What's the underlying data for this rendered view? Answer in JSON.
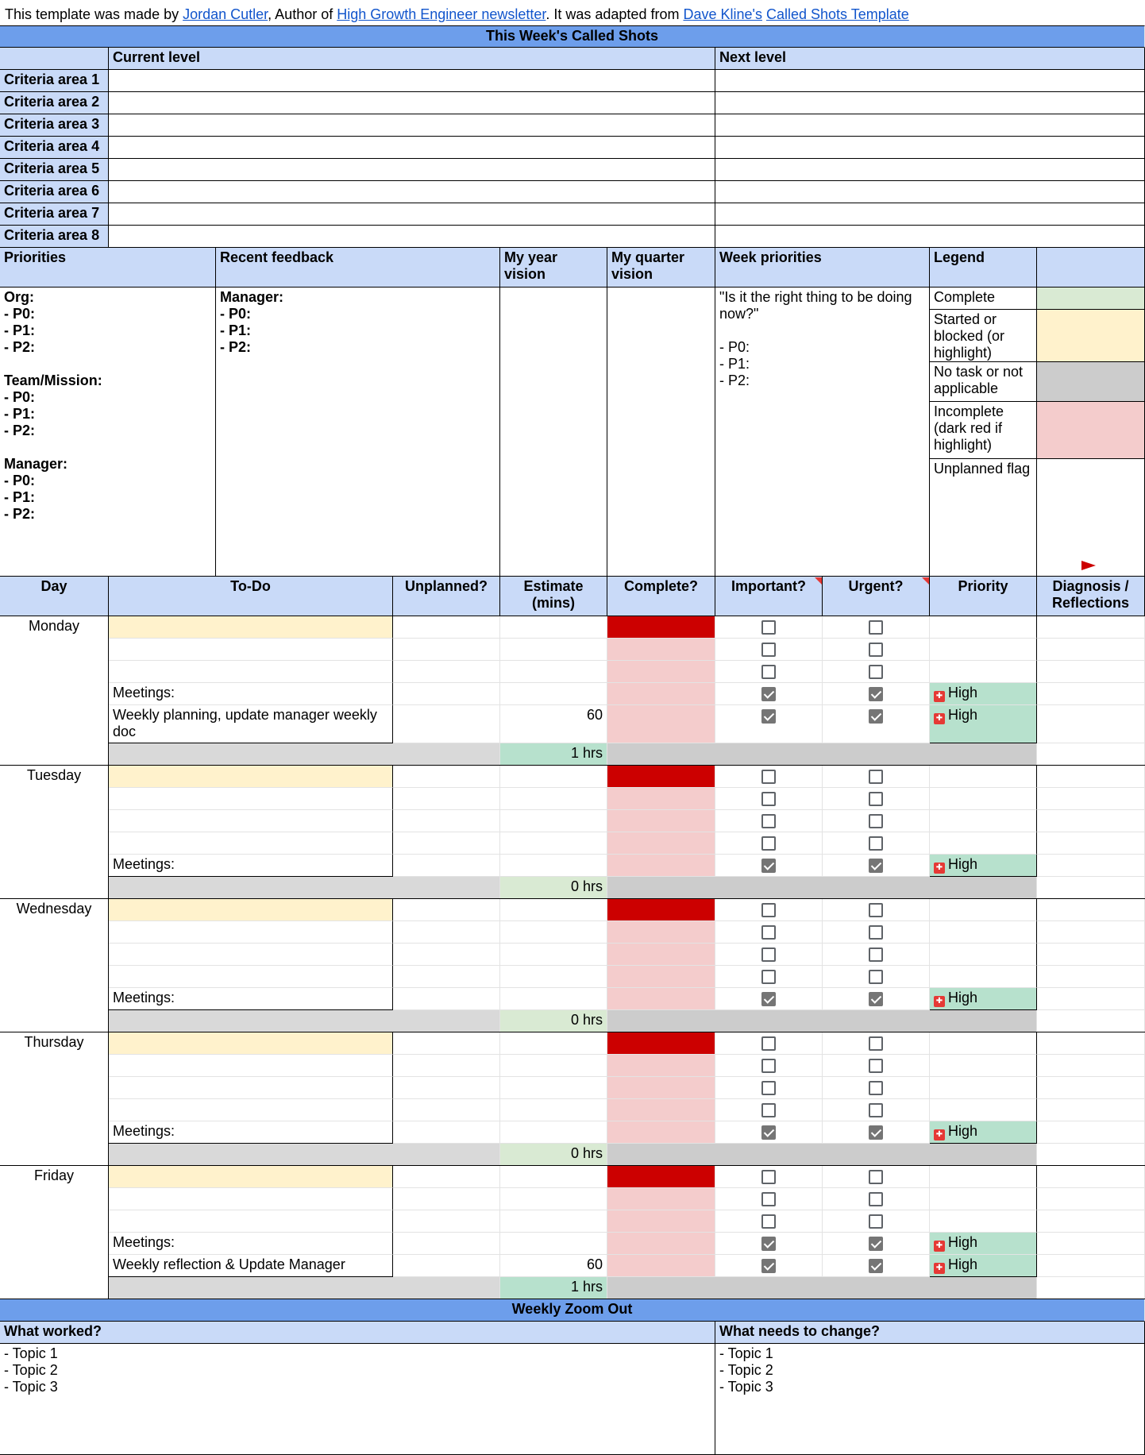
{
  "credit": {
    "pre": "This template was made by ",
    "author": "Jordan Cutler",
    "mid1": ", Author of ",
    "newsletter": "High Growth Engineer newsletter",
    "mid2": ". It was adapted from ",
    "adapter": "Dave Kline's",
    "space": " ",
    "template": "Called Shots Template"
  },
  "title": "This Week's Called Shots",
  "levels": {
    "current_label": "Current level",
    "next_label": "Next level",
    "criteria": [
      "Criteria area 1",
      "Criteria area 2",
      "Criteria area 3",
      "Criteria area 4",
      "Criteria area 5",
      "Criteria area 6",
      "Criteria area 7",
      "Criteria area 8"
    ]
  },
  "headers": {
    "priorities": "Priorities",
    "feedback": "Recent feedback",
    "year_vision": "My year vision",
    "quarter_vision": "My quarter vision",
    "week_priorities": "Week priorities",
    "legend": "Legend"
  },
  "priorities_text": "Org:\n- P0:\n- P1:\n- P2:\n\nTeam/Mission:\n- P0:\n- P1:\n- P2:\n\nManager:\n- P0:\n- P1:\n- P2:",
  "feedback_text": "Manager:\n- P0:\n- P1:\n- P2:",
  "week_priorities_text": "\"Is it the right thing to be doing now?\"\n\n- P0:\n- P1:\n- P2:",
  "legend": [
    {
      "label": "Complete",
      "color": "#d9ead3"
    },
    {
      "label": "Started or blocked (or highlight)",
      "color": "#fff2cc"
    },
    {
      "label": "No task or not applicable",
      "color": "#cccccc"
    },
    {
      "label": "Incomplete (dark red if highlight)",
      "color": "#f4cccc"
    },
    {
      "label": "Unplanned flag",
      "color": "#ffffff"
    }
  ],
  "table_headers": {
    "day": "Day",
    "todo": "To-Do",
    "unplanned": "Unplanned?",
    "estimate": "Estimate (mins)",
    "complete": "Complete?",
    "important": "Important?",
    "urgent": "Urgent?",
    "priority": "Priority",
    "diagnosis": "Diagnosis / Reflections"
  },
  "days": [
    {
      "name": "Monday",
      "total": "1 hrs",
      "rows": [
        {
          "todo": "",
          "estimate": "",
          "important": false,
          "urgent": false,
          "priority": ""
        },
        {
          "todo": "",
          "estimate": "",
          "important": false,
          "urgent": false,
          "priority": ""
        },
        {
          "todo": "",
          "estimate": "",
          "important": false,
          "urgent": false,
          "priority": ""
        },
        {
          "todo": "Meetings:",
          "estimate": "",
          "important": true,
          "urgent": true,
          "priority": "High"
        },
        {
          "todo": "Weekly planning, update manager weekly doc",
          "estimate": "60",
          "important": true,
          "urgent": true,
          "priority": "High"
        }
      ]
    },
    {
      "name": "Tuesday",
      "total": "0 hrs",
      "rows": [
        {
          "todo": "",
          "estimate": "",
          "important": false,
          "urgent": false,
          "priority": ""
        },
        {
          "todo": "",
          "estimate": "",
          "important": false,
          "urgent": false,
          "priority": ""
        },
        {
          "todo": "",
          "estimate": "",
          "important": false,
          "urgent": false,
          "priority": ""
        },
        {
          "todo": "",
          "estimate": "",
          "important": false,
          "urgent": false,
          "priority": ""
        },
        {
          "todo": "Meetings:",
          "estimate": "",
          "important": true,
          "urgent": true,
          "priority": "High"
        }
      ]
    },
    {
      "name": "Wednesday",
      "total": "0 hrs",
      "rows": [
        {
          "todo": "",
          "estimate": "",
          "important": false,
          "urgent": false,
          "priority": ""
        },
        {
          "todo": "",
          "estimate": "",
          "important": false,
          "urgent": false,
          "priority": ""
        },
        {
          "todo": "",
          "estimate": "",
          "important": false,
          "urgent": false,
          "priority": ""
        },
        {
          "todo": "",
          "estimate": "",
          "important": false,
          "urgent": false,
          "priority": ""
        },
        {
          "todo": "Meetings:",
          "estimate": "",
          "important": true,
          "urgent": true,
          "priority": "High"
        }
      ]
    },
    {
      "name": "Thursday",
      "total": "0 hrs",
      "rows": [
        {
          "todo": "",
          "estimate": "",
          "important": false,
          "urgent": false,
          "priority": ""
        },
        {
          "todo": "",
          "estimate": "",
          "important": false,
          "urgent": false,
          "priority": ""
        },
        {
          "todo": "",
          "estimate": "",
          "important": false,
          "urgent": false,
          "priority": ""
        },
        {
          "todo": "",
          "estimate": "",
          "important": false,
          "urgent": false,
          "priority": ""
        },
        {
          "todo": "Meetings:",
          "estimate": "",
          "important": true,
          "urgent": true,
          "priority": "High"
        }
      ]
    },
    {
      "name": "Friday",
      "total": "1 hrs",
      "rows": [
        {
          "todo": "",
          "estimate": "",
          "important": false,
          "urgent": false,
          "priority": ""
        },
        {
          "todo": "",
          "estimate": "",
          "important": false,
          "urgent": false,
          "priority": ""
        },
        {
          "todo": "",
          "estimate": "",
          "important": false,
          "urgent": false,
          "priority": ""
        },
        {
          "todo": "Meetings:",
          "estimate": "",
          "important": true,
          "urgent": true,
          "priority": "High"
        },
        {
          "todo": "Weekly reflection & Update Manager",
          "estimate": "60",
          "important": true,
          "urgent": true,
          "priority": "High"
        }
      ]
    }
  ],
  "zoom_out": {
    "title": "Weekly Zoom Out",
    "worked_label": "What worked?",
    "change_label": "What needs to change?",
    "worked_text": "- Topic 1\n- Topic 2\n- Topic 3",
    "change_text": "- Topic 1\n- Topic 2\n- Topic 3"
  },
  "colors": {
    "header": "#c9daf8",
    "band": "#6d9eeb",
    "complete_dark": "#cc0000",
    "incomplete": "#f4cccc",
    "started": "#fff2cc",
    "total": "#d9ead3",
    "high": "#b7e1cd",
    "na": "#cccccc"
  },
  "icons": {
    "priority": "priority-flag-icon",
    "unplanned": "flag-icon"
  }
}
